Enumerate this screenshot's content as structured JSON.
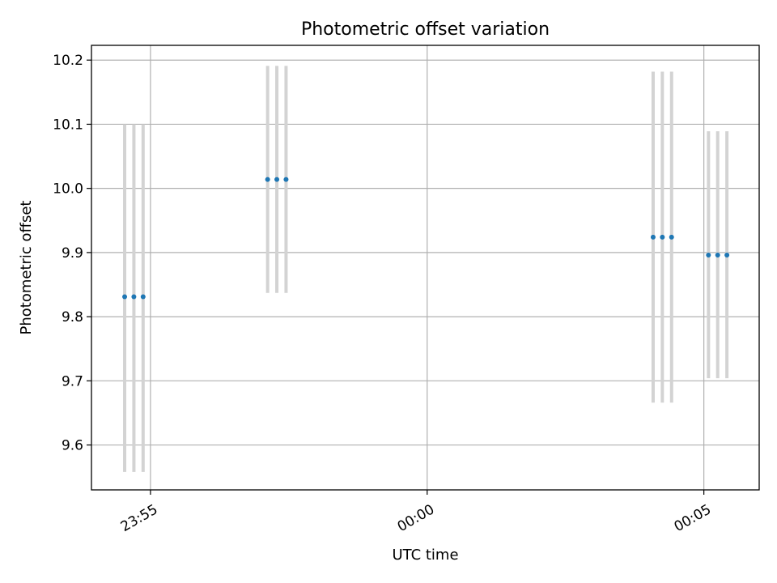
{
  "chart_data": {
    "type": "scatter",
    "title": "Photometric offset variation",
    "xlabel": "UTC time",
    "ylabel": "Photometric offset",
    "x_axis": {
      "type": "time",
      "ticks": [
        "23:55",
        "00:00",
        "00:05"
      ],
      "range": [
        "23:53:56",
        "00:06:00"
      ]
    },
    "ylim": [
      9.53,
      10.223
    ],
    "yticks": [
      9.6,
      9.7,
      9.8,
      9.9,
      10.0,
      10.1,
      10.2
    ],
    "grid": true,
    "colors": {
      "point": "#1f77b4",
      "errorbar": "#d3d3d3",
      "grid": "#b0b0b0"
    },
    "points": [
      {
        "time": "23:54:32",
        "y": 9.831,
        "ylow": 9.558,
        "yhigh": 10.1
      },
      {
        "time": "23:54:42",
        "y": 9.831,
        "ylow": 9.558,
        "yhigh": 10.1
      },
      {
        "time": "23:54:52",
        "y": 9.831,
        "ylow": 9.558,
        "yhigh": 10.1
      },
      {
        "time": "23:57:07",
        "y": 10.014,
        "ylow": 9.837,
        "yhigh": 10.191
      },
      {
        "time": "23:57:17",
        "y": 10.014,
        "ylow": 9.837,
        "yhigh": 10.191
      },
      {
        "time": "23:57:27",
        "y": 10.014,
        "ylow": 9.837,
        "yhigh": 10.191
      },
      {
        "time": "00:04:05",
        "y": 9.924,
        "ylow": 9.666,
        "yhigh": 10.182
      },
      {
        "time": "00:04:15",
        "y": 9.924,
        "ylow": 9.666,
        "yhigh": 10.182
      },
      {
        "time": "00:04:25",
        "y": 9.924,
        "ylow": 9.666,
        "yhigh": 10.182
      },
      {
        "time": "00:05:05",
        "y": 9.896,
        "ylow": 9.704,
        "yhigh": 10.089
      },
      {
        "time": "00:05:15",
        "y": 9.896,
        "ylow": 9.704,
        "yhigh": 10.089
      },
      {
        "time": "00:05:25",
        "y": 9.896,
        "ylow": 9.704,
        "yhigh": 10.089
      }
    ]
  }
}
